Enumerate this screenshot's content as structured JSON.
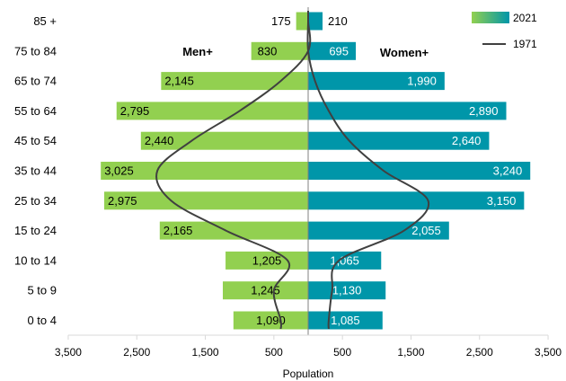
{
  "chart_data": {
    "type": "bar",
    "orientation": "horizontal",
    "layout": "population-pyramid",
    "categories": [
      "85 +",
      "75 to 84",
      "65 to 74",
      "55 to 64",
      "45 to 54",
      "35 to 44",
      "25 to 34",
      "15 to 24",
      "10 to 14",
      "5 to 9",
      "0 to 4"
    ],
    "series": [
      {
        "name": "2021",
        "kind": "bar",
        "groups": [
          {
            "name": "Men+",
            "side": "left",
            "color": "#92d050",
            "values": [
              175,
              830,
              2145,
              2795,
              2440,
              3025,
              2975,
              2165,
              1205,
              1245,
              1090
            ],
            "labels": [
              "175",
              "830",
              "2,145",
              "2,795",
              "2,440",
              "3,025",
              "2,975",
              "2,165",
              "1,205",
              "1,245",
              "1,090"
            ]
          },
          {
            "name": "Women+",
            "side": "right",
            "color": "#0096a9",
            "values": [
              210,
              695,
              1990,
              2890,
              2640,
              3240,
              3150,
              2055,
              1065,
              1130,
              1085
            ],
            "labels": [
              "210",
              "695",
              "1,990",
              "2,890",
              "2,640",
              "3,240",
              "3,150",
              "2,055",
              "1,065",
              "1,130",
              "1,085"
            ]
          }
        ]
      },
      {
        "name": "1971",
        "kind": "line",
        "color": "#404040",
        "men": [
          0,
          0,
          400,
          1000,
          1700,
          2200,
          2000,
          1200,
          300,
          500,
          400
        ],
        "women": [
          0,
          0,
          100,
          300,
          600,
          1100,
          1750,
          1400,
          450,
          350,
          300
        ]
      }
    ],
    "side_labels": {
      "left": "Men+",
      "right": "Women+"
    },
    "xlabel": "Population",
    "xticks": [
      "3,500",
      "2,500",
      "1,500",
      "500",
      "500",
      "1,500",
      "2,500",
      "3,500"
    ],
    "xtick_values": [
      -3500,
      -2500,
      -1500,
      -500,
      500,
      1500,
      2500,
      3500
    ],
    "xlim": [
      -3500,
      3500
    ],
    "legend": {
      "placement": "top-right",
      "gradient": [
        "#92d050",
        "#0096a9"
      ]
    }
  }
}
